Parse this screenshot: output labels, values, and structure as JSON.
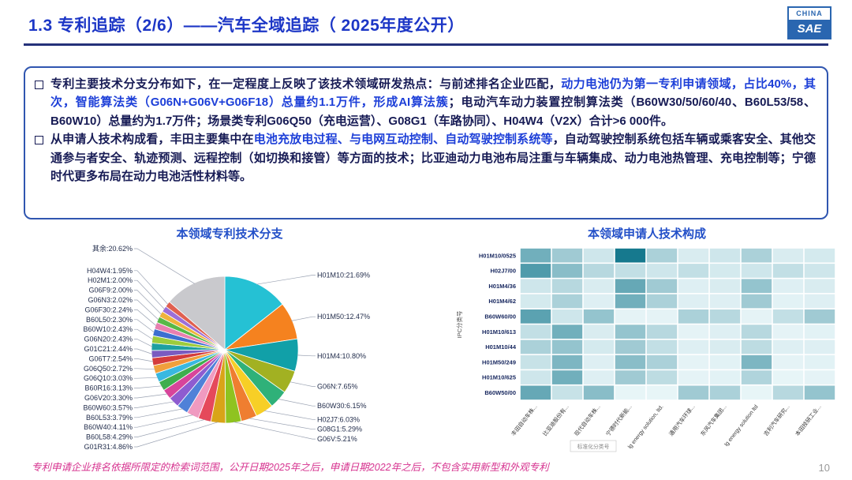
{
  "header": {
    "title": "1.3 专利追踪（2/6）——汽车全域追踪（ 2025年度公开）",
    "logo_top": "CHINA",
    "logo_bottom": "SAE"
  },
  "bullets": [
    {
      "runs": [
        {
          "t": "专利主要技术分支分布如下，在一定程度上反映了该技术领域研发热点：与前述排名企业匹配，",
          "c": "d"
        },
        {
          "t": "动力电池仍为第一专利申请领域，占比40%，其次，智能算法类（G06N+G06V+G06F18）总量约1.1万件，形成AI算法簇",
          "c": "b"
        },
        {
          "t": "；电动汽车动力装置控制算法类（B60W30/50/60/40、B60L53/58、B60W10）总量约为1.7万件；场景类专利G06Q50（充电运营）、G08G1（车路协同）、H04W4（V2X）合计>6 000件。",
          "c": "d"
        }
      ]
    },
    {
      "runs": [
        {
          "t": "从申请人技术构成看，丰田主要集中在",
          "c": "d"
        },
        {
          "t": "电池充放电过程、与电网互动控制、自动驾驶控制系统等",
          "c": "b"
        },
        {
          "t": "，自动驾驶控制系统包括车辆或乘客安全、其他交通参与者安全、轨迹预测、远程控制（如切换和接管）等方面的技术；比亚迪动力电池布局注重与车辆集成、动力电池热管理、充电控制等；宁德时代更多布局在动力电池活性材料等。",
          "c": "d"
        }
      ]
    }
  ],
  "chart_data": [
    {
      "type": "pie",
      "title": "本领域专利技术分支",
      "slices": [
        {
          "label": "H01M10",
          "pct": "21.69%",
          "value": 21.69
        },
        {
          "label": "H01M50",
          "pct": "12.47%",
          "value": 12.47
        },
        {
          "label": "H01M4",
          "pct": "10.80%",
          "value": 10.8
        },
        {
          "label": "G06N",
          "pct": "7.65%",
          "value": 7.65
        },
        {
          "label": "B60W30",
          "pct": "6.15%",
          "value": 6.15
        },
        {
          "label": "H02J7",
          "pct": "6.03%",
          "value": 6.03
        },
        {
          "label": "G08G1",
          "pct": "5.29%",
          "value": 5.29
        },
        {
          "label": "G06V",
          "pct": "5.21%",
          "value": 5.21
        },
        {
          "label": "G01R31",
          "pct": "4.86%",
          "value": 4.86
        },
        {
          "label": "B60L58",
          "pct": "4.29%",
          "value": 4.29
        },
        {
          "label": "B60W40",
          "pct": "4.11%",
          "value": 4.11
        },
        {
          "label": "B60L53",
          "pct": "3.79%",
          "value": 3.79
        },
        {
          "label": "B60W60",
          "pct": "3.57%",
          "value": 3.57
        },
        {
          "label": "G06V20",
          "pct": "3.30%",
          "value": 3.3
        },
        {
          "label": "B60R16",
          "pct": "3.13%",
          "value": 3.13
        },
        {
          "label": "G06Q10",
          "pct": "3.03%",
          "value": 3.03
        },
        {
          "label": "G06Q50",
          "pct": "2.72%",
          "value": 2.72
        },
        {
          "label": "G06T7",
          "pct": "2.54%",
          "value": 2.54
        },
        {
          "label": "G01C21",
          "pct": "2.44%",
          "value": 2.44
        },
        {
          "label": "G06N20",
          "pct": "2.43%",
          "value": 2.43
        },
        {
          "label": "B60W10",
          "pct": "2.43%",
          "value": 2.43
        },
        {
          "label": "B60L50",
          "pct": "2.30%",
          "value": 2.3
        },
        {
          "label": "G06F30",
          "pct": "2.24%",
          "value": 2.24
        },
        {
          "label": "G06N3",
          "pct": "2.02%",
          "value": 2.02
        },
        {
          "label": "G06F9",
          "pct": "2.00%",
          "value": 2.0
        },
        {
          "label": "H02M1",
          "pct": "2.00%",
          "value": 2.0
        },
        {
          "label": "H04W4",
          "pct": "1.95%",
          "value": 1.95
        },
        {
          "label": "其余",
          "pct": "20.62%",
          "value": 20.62
        }
      ],
      "palette": [
        "#25c1d4",
        "#f5821f",
        "#11a0a8",
        "#a2b122",
        "#2fb179",
        "#f7cf26",
        "#ef7e30",
        "#8fc320",
        "#d9a418",
        "#e5495b",
        "#f09ac0",
        "#4f81d8",
        "#8e5cd0",
        "#d8449a",
        "#3fae4e",
        "#39b8e0",
        "#f0a03c",
        "#d43c3c",
        "#7a5bc0",
        "#1fa0a0",
        "#9ccc3c",
        "#3c6fd0",
        "#e87fb0",
        "#57b847",
        "#efb33c",
        "#9c6fd8",
        "#e06050",
        "#c9c9cd"
      ]
    },
    {
      "type": "heatmap",
      "title": "本领域申请人技术构成",
      "axis_label": "IPC分类号",
      "note": "标准化分类号",
      "rows": [
        "H01M10/0525",
        "H02J7/00",
        "H01M4/36",
        "H01M4/62",
        "B60W60/00",
        "H01M10/613",
        "H01M10/44",
        "H01M50/249",
        "H01M10/625",
        "B60W50/00"
      ],
      "cols": [
        "丰田自动车株...",
        "比亚迪股份有...",
        "现代自动车株...",
        "宁德时代新能...",
        "lg energy solution, ltd.",
        "通用汽车环球...",
        "东风汽车集团...",
        "lg energy solution ltd",
        "吉利汽车研究...",
        "本田技研工业..."
      ],
      "values": [
        [
          0.55,
          0.35,
          0.15,
          0.95,
          0.3,
          0.1,
          0.15,
          0.3,
          0.1,
          0.12
        ],
        [
          0.7,
          0.45,
          0.25,
          0.2,
          0.15,
          0.2,
          0.12,
          0.15,
          0.2,
          0.15
        ],
        [
          0.15,
          0.25,
          0.1,
          0.6,
          0.35,
          0.08,
          0.1,
          0.4,
          0.08,
          0.1
        ],
        [
          0.12,
          0.3,
          0.08,
          0.55,
          0.3,
          0.08,
          0.08,
          0.35,
          0.06,
          0.08
        ],
        [
          0.65,
          0.15,
          0.4,
          0.05,
          0.05,
          0.3,
          0.25,
          0.05,
          0.2,
          0.35
        ],
        [
          0.2,
          0.55,
          0.1,
          0.4,
          0.25,
          0.05,
          0.08,
          0.25,
          0.05,
          0.06
        ],
        [
          0.3,
          0.4,
          0.12,
          0.35,
          0.2,
          0.08,
          0.1,
          0.22,
          0.08,
          0.08
        ],
        [
          0.18,
          0.5,
          0.08,
          0.45,
          0.3,
          0.05,
          0.06,
          0.5,
          0.05,
          0.06
        ],
        [
          0.15,
          0.55,
          0.08,
          0.35,
          0.22,
          0.05,
          0.06,
          0.28,
          0.04,
          0.05
        ],
        [
          0.6,
          0.18,
          0.45,
          0.04,
          0.04,
          0.35,
          0.3,
          0.04,
          0.25,
          0.4
        ]
      ],
      "color_low": "#f0fafc",
      "color_high": "#0a7288"
    }
  ],
  "footer": {
    "note": "专利申请企业排名依据所限定的检索词范围，公开日期2025年之后，申请日期2022年之后，不包含实用新型和外观专利",
    "page": "10"
  }
}
